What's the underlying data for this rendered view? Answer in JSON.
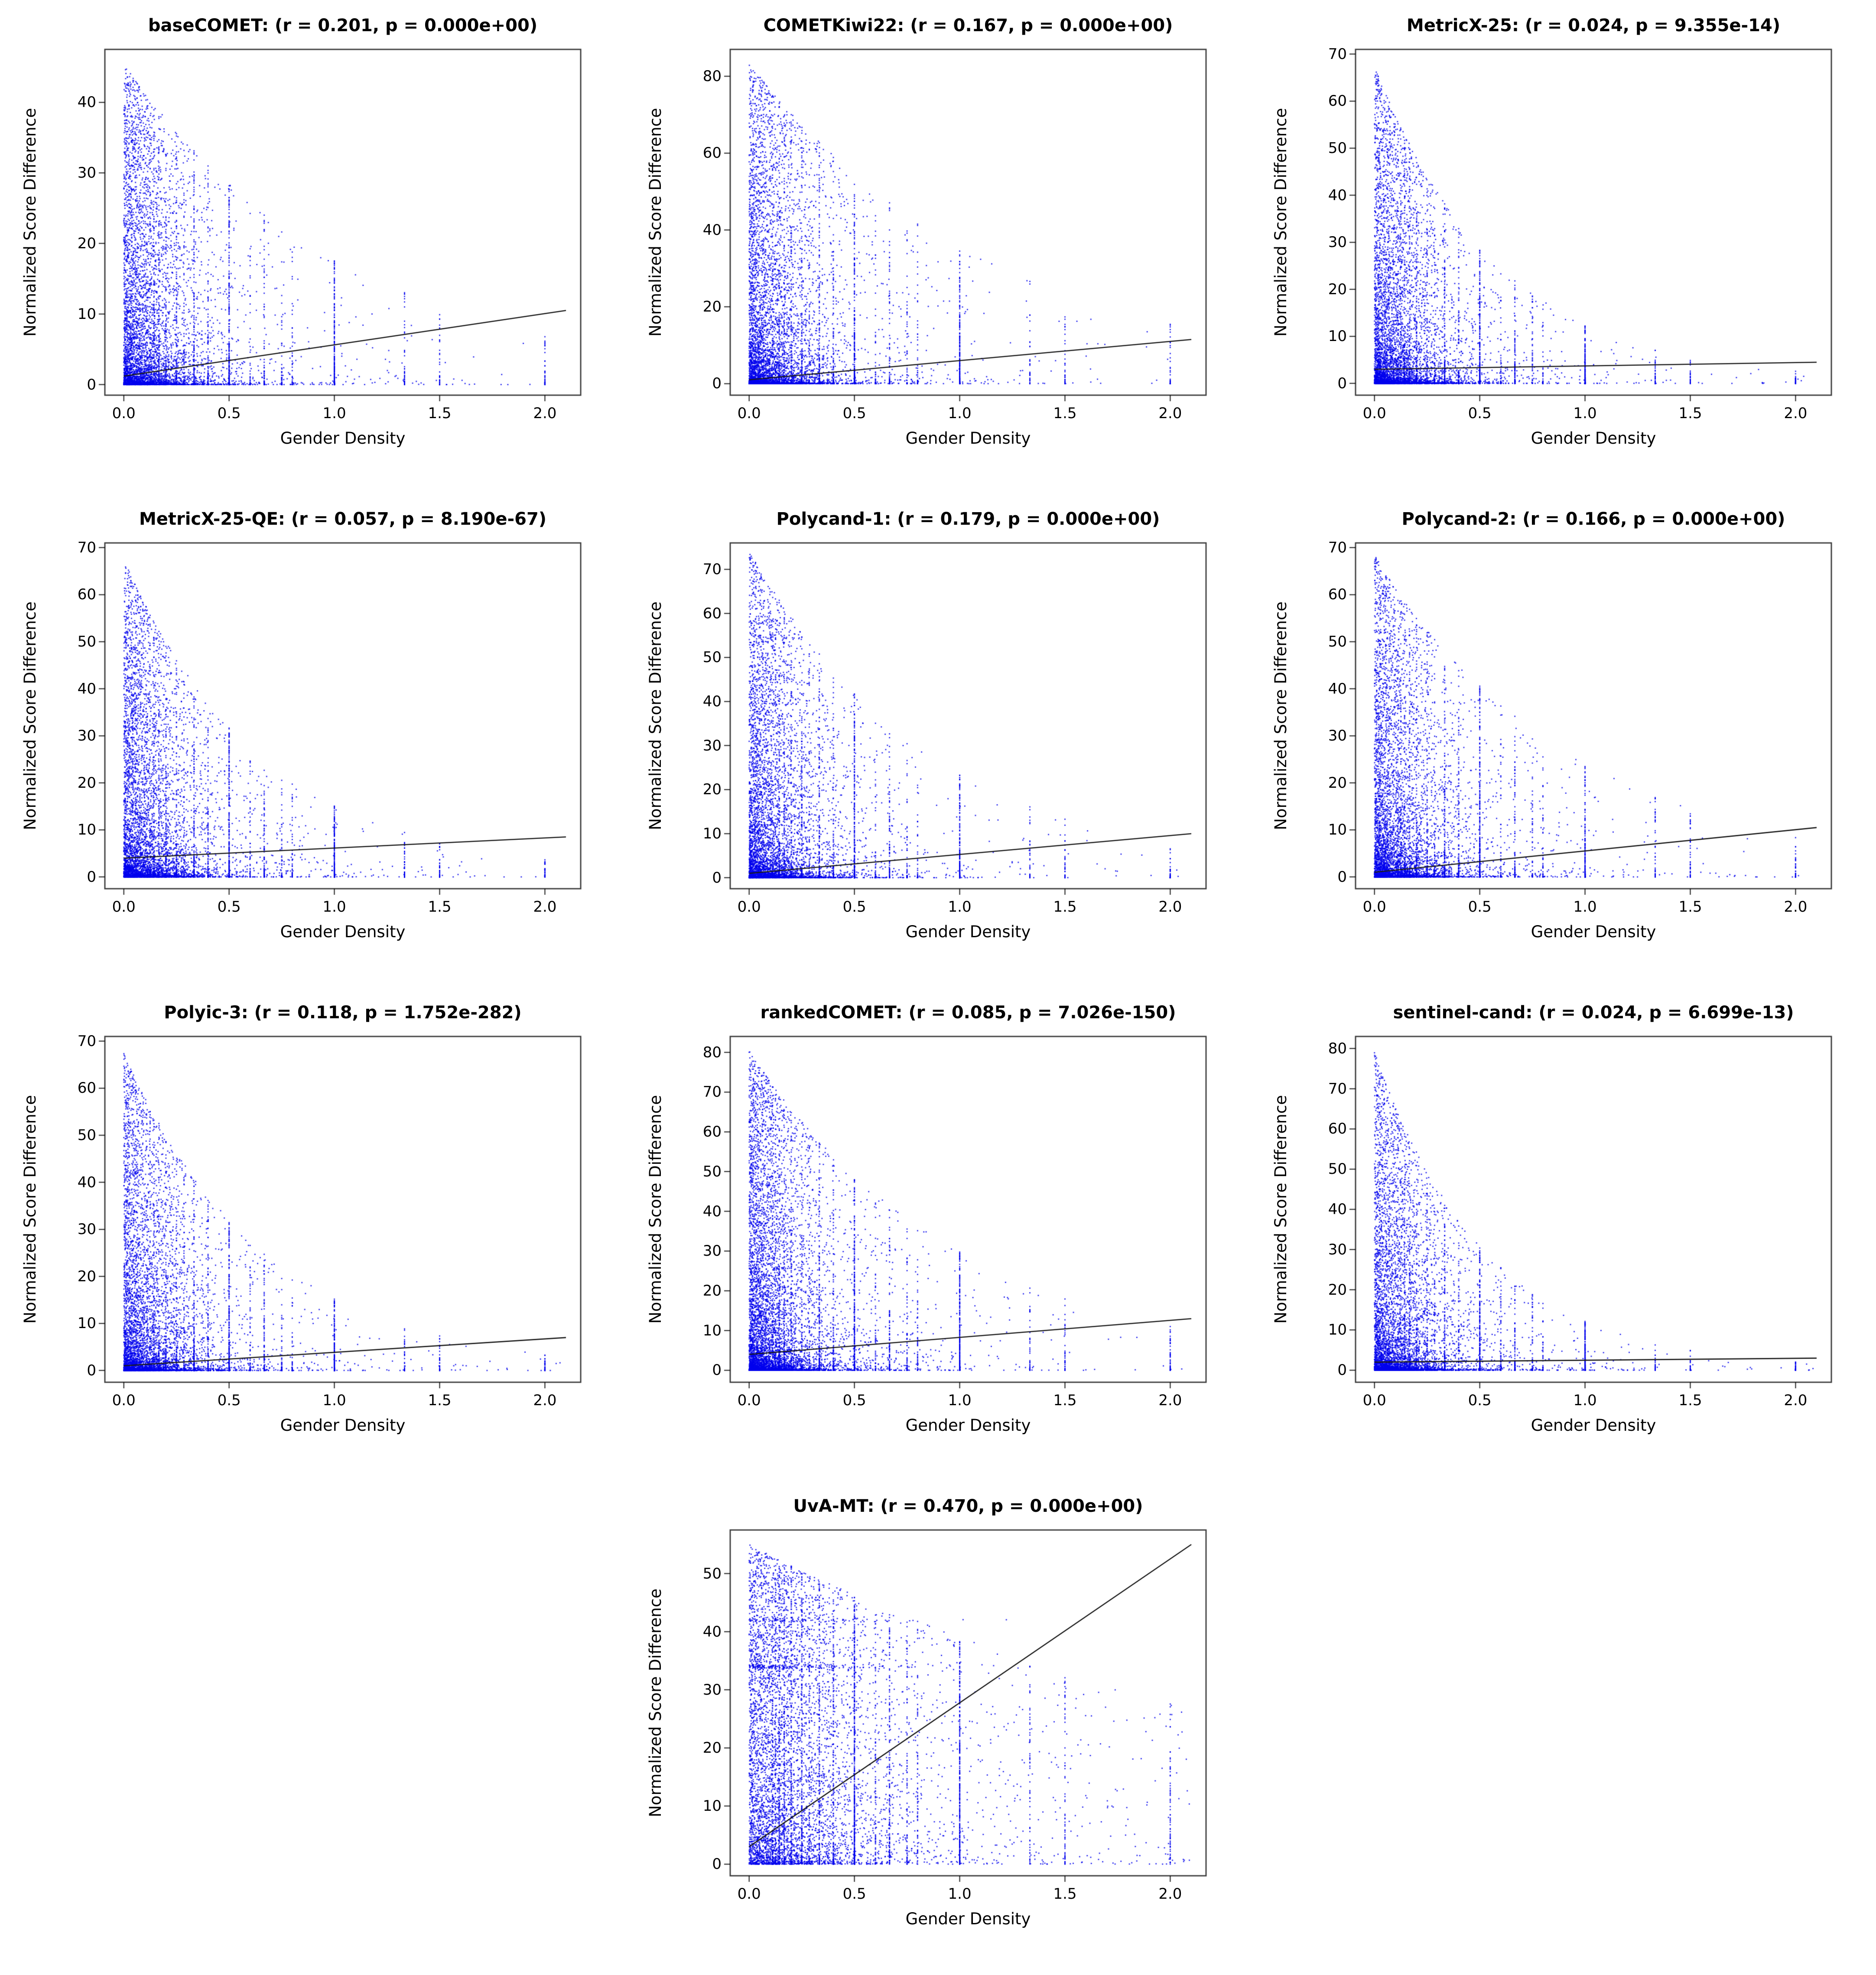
{
  "figure": {
    "background": "#ffffff",
    "point_color": "#0000EE",
    "line_color": "#1a1a1a",
    "axis_color": "#000000"
  },
  "chart_data": [
    {
      "type": "scatter",
      "metric": "baseCOMET",
      "r": 0.201,
      "p": "0.000e+00",
      "title": "baseCOMET: (r = 0.201, p = 0.000e+00)",
      "xlabel": "Gender Density",
      "ylabel": "Normalized Score Difference",
      "xlim": [
        -0.09,
        2.17
      ],
      "ylim": [
        -1.5,
        47.5
      ],
      "xticks": [
        0.0,
        0.5,
        1.0,
        1.5,
        2.0
      ],
      "xtick_labels": [
        "0.0",
        "0.5",
        "1.0",
        "1.5",
        "2.0"
      ],
      "yticks": [
        0,
        10,
        20,
        30,
        40
      ],
      "regression_line": {
        "x": [
          0,
          2.1
        ],
        "y": [
          1.2,
          10.5
        ]
      },
      "grid": false,
      "scatter": {
        "n": 7000,
        "seed": 11,
        "env": 45,
        "decay": 0.95,
        "pow": 3.0,
        "floor": 0.4,
        "xlambda": 8.5,
        "stripe_frac": 0.22
      }
    },
    {
      "type": "scatter",
      "metric": "COMETKiwi22",
      "r": 0.167,
      "p": "0.000e+00",
      "title": "COMETKiwi22: (r = 0.167, p = 0.000e+00)",
      "xlabel": "Gender Density",
      "ylabel": "Normalized Score Difference",
      "xlim": [
        -0.09,
        2.17
      ],
      "ylim": [
        -3,
        87
      ],
      "xticks": [
        0.0,
        0.5,
        1.0,
        1.5,
        2.0
      ],
      "xtick_labels": [
        "0.0",
        "0.5",
        "1.0",
        "1.5",
        "2.0"
      ],
      "yticks": [
        0,
        20,
        40,
        60,
        80
      ],
      "regression_line": {
        "x": [
          0,
          2.1
        ],
        "y": [
          1.0,
          11.5
        ]
      },
      "grid": false,
      "scatter": {
        "n": 7000,
        "seed": 22,
        "env": 83,
        "decay": 0.85,
        "pow": 3.3,
        "floor": 0.4,
        "xlambda": 8.5,
        "stripe_frac": 0.22
      }
    },
    {
      "type": "scatter",
      "metric": "MetricX-25",
      "r": 0.024,
      "p": "9.355e-14",
      "title": "MetricX-25: (r = 0.024, p = 9.355e-14)",
      "xlabel": "Gender Density",
      "ylabel": "Normalized Score Difference",
      "xlim": [
        -0.09,
        2.17
      ],
      "ylim": [
        -2.5,
        71
      ],
      "xticks": [
        0.0,
        0.5,
        1.0,
        1.5,
        2.0
      ],
      "xtick_labels": [
        "0.0",
        "0.5",
        "1.0",
        "1.5",
        "2.0"
      ],
      "yticks": [
        0,
        10,
        20,
        30,
        40,
        50,
        60,
        70
      ],
      "regression_line": {
        "x": [
          0,
          2.1
        ],
        "y": [
          3.0,
          4.5
        ]
      },
      "grid": false,
      "scatter": {
        "n": 7000,
        "seed": 33,
        "env": 67,
        "decay": 1.7,
        "pow": 3.2,
        "floor": 0.4,
        "xlambda": 8.5,
        "stripe_frac": 0.22
      }
    },
    {
      "type": "scatter",
      "metric": "MetricX-25-QE",
      "r": 0.057,
      "p": "8.190e-67",
      "title": "MetricX-25-QE: (r = 0.057, p = 8.190e-67)",
      "xlabel": "Gender Density",
      "ylabel": "Normalized Score Difference",
      "xlim": [
        -0.09,
        2.17
      ],
      "ylim": [
        -2.5,
        71
      ],
      "xticks": [
        0.0,
        0.5,
        1.0,
        1.5,
        2.0
      ],
      "xtick_labels": [
        "0.0",
        "0.5",
        "1.0",
        "1.5",
        "2.0"
      ],
      "yticks": [
        0,
        10,
        20,
        30,
        40,
        50,
        60,
        70
      ],
      "regression_line": {
        "x": [
          0,
          2.1
        ],
        "y": [
          4.0,
          8.5
        ]
      },
      "grid": false,
      "scatter": {
        "n": 7000,
        "seed": 44,
        "env": 67,
        "decay": 1.5,
        "pow": 3.0,
        "floor": 0.4,
        "xlambda": 8.5,
        "stripe_frac": 0.22
      }
    },
    {
      "type": "scatter",
      "metric": "Polycand-1",
      "r": 0.179,
      "p": "0.000e+00",
      "title": "Polycand-1: (r = 0.179, p = 0.000e+00)",
      "xlabel": "Gender Density",
      "ylabel": "Normalized Score Difference",
      "xlim": [
        -0.09,
        2.17
      ],
      "ylim": [
        -2.5,
        76
      ],
      "xticks": [
        0.0,
        0.5,
        1.0,
        1.5,
        2.0
      ],
      "xtick_labels": [
        "0.0",
        "0.5",
        "1.0",
        "1.5",
        "2.0"
      ],
      "yticks": [
        0,
        10,
        20,
        30,
        40,
        50,
        60,
        70
      ],
      "regression_line": {
        "x": [
          0,
          2.1
        ],
        "y": [
          1.0,
          10.0
        ]
      },
      "grid": false,
      "scatter": {
        "n": 7000,
        "seed": 55,
        "env": 74,
        "decay": 1.15,
        "pow": 3.2,
        "floor": 0.4,
        "xlambda": 8.5,
        "stripe_frac": 0.22
      }
    },
    {
      "type": "scatter",
      "metric": "Polycand-2",
      "r": 0.166,
      "p": "0.000e+00",
      "title": "Polycand-2: (r = 0.166, p = 0.000e+00)",
      "xlabel": "Gender Density",
      "ylabel": "Normalized Score Difference",
      "xlim": [
        -0.09,
        2.17
      ],
      "ylim": [
        -2.5,
        71
      ],
      "xticks": [
        0.0,
        0.5,
        1.0,
        1.5,
        2.0
      ],
      "xtick_labels": [
        "0.0",
        "0.5",
        "1.0",
        "1.5",
        "2.0"
      ],
      "yticks": [
        0,
        10,
        20,
        30,
        40,
        50,
        60,
        70
      ],
      "regression_line": {
        "x": [
          0,
          2.1
        ],
        "y": [
          1.0,
          10.5
        ]
      },
      "grid": false,
      "scatter": {
        "n": 7000,
        "seed": 66,
        "env": 68,
        "decay": 1.05,
        "pow": 3.0,
        "floor": 0.4,
        "xlambda": 8.5,
        "stripe_frac": 0.22
      }
    },
    {
      "type": "scatter",
      "metric": "Polyic-3",
      "r": 0.118,
      "p": "1.752e-282",
      "title": "Polyic-3: (r = 0.118, p = 1.752e-282)",
      "xlabel": "Gender Density",
      "ylabel": "Normalized Score Difference",
      "xlim": [
        -0.09,
        2.17
      ],
      "ylim": [
        -2.5,
        71
      ],
      "xticks": [
        0.0,
        0.5,
        1.0,
        1.5,
        2.0
      ],
      "xtick_labels": [
        "0.0",
        "0.5",
        "1.0",
        "1.5",
        "2.0"
      ],
      "yticks": [
        0,
        10,
        20,
        30,
        40,
        50,
        60,
        70
      ],
      "regression_line": {
        "x": [
          0,
          2.1
        ],
        "y": [
          1.0,
          7.0
        ]
      },
      "grid": false,
      "scatter": {
        "n": 7000,
        "seed": 77,
        "env": 67,
        "decay": 1.5,
        "pow": 3.2,
        "floor": 0.4,
        "xlambda": 8.5,
        "stripe_frac": 0.22
      }
    },
    {
      "type": "scatter",
      "metric": "rankedCOMET",
      "r": 0.085,
      "p": "7.026e-150",
      "title": "rankedCOMET: (r = 0.085, p = 7.026e-150)",
      "xlabel": "Gender Density",
      "ylabel": "Normalized Score Difference",
      "xlim": [
        -0.09,
        2.17
      ],
      "ylim": [
        -3,
        84
      ],
      "xticks": [
        0.0,
        0.5,
        1.0,
        1.5,
        2.0
      ],
      "xtick_labels": [
        "0.0",
        "0.5",
        "1.0",
        "1.5",
        "2.0"
      ],
      "yticks": [
        0,
        10,
        20,
        30,
        40,
        50,
        60,
        70,
        80
      ],
      "regression_line": {
        "x": [
          0,
          2.1
        ],
        "y": [
          4.0,
          13.0
        ]
      },
      "grid": false,
      "scatter": {
        "n": 8000,
        "seed": 88,
        "env": 80,
        "decay": 1.0,
        "pow": 2.8,
        "floor": 0.4,
        "xlambda": 8.5,
        "stripe_frac": 0.22
      }
    },
    {
      "type": "scatter",
      "metric": "sentinel-cand",
      "r": 0.024,
      "p": "6.699e-13",
      "title": "sentinel-cand: (r = 0.024, p = 6.699e-13)",
      "xlabel": "Gender Density",
      "ylabel": "Normalized Score Difference",
      "xlim": [
        -0.09,
        2.17
      ],
      "ylim": [
        -3,
        83
      ],
      "xticks": [
        0.0,
        0.5,
        1.0,
        1.5,
        2.0
      ],
      "xtick_labels": [
        "0.0",
        "0.5",
        "1.0",
        "1.5",
        "2.0"
      ],
      "yticks": [
        0,
        10,
        20,
        30,
        40,
        50,
        60,
        70,
        80
      ],
      "regression_line": {
        "x": [
          0,
          2.1
        ],
        "y": [
          2.0,
          3.0
        ]
      },
      "grid": false,
      "scatter": {
        "n": 7000,
        "seed": 99,
        "env": 79,
        "decay": 1.9,
        "pow": 3.2,
        "floor": 0.4,
        "xlambda": 8.5,
        "stripe_frac": 0.22
      }
    },
    {
      "type": "scatter",
      "metric": "UvA-MT",
      "r": 0.47,
      "p": "0.000e+00",
      "title": "UvA-MT: (r = 0.470, p = 0.000e+00)",
      "xlabel": "Gender Density",
      "ylabel": "Normalized Score Difference",
      "xlim": [
        -0.09,
        2.17
      ],
      "ylim": [
        -2,
        57.5
      ],
      "xticks": [
        0.0,
        0.5,
        1.0,
        1.5,
        2.0
      ],
      "xtick_labels": [
        "0.0",
        "0.5",
        "1.0",
        "1.5",
        "2.0"
      ],
      "yticks": [
        0,
        10,
        20,
        30,
        40,
        50
      ],
      "regression_line": {
        "x": [
          0,
          2.1
        ],
        "y": [
          3.0,
          55.0
        ]
      },
      "grid": false,
      "scatter": {
        "n": 8000,
        "seed": 110,
        "env": 54,
        "decay": 0.35,
        "pow": 1.7,
        "floor": 1.0,
        "xlambda": 4.5,
        "stripe_frac": 0.3,
        "bands": [
          [
            34,
            150,
            0.6
          ],
          [
            42,
            80,
            0.5
          ]
        ]
      }
    }
  ]
}
